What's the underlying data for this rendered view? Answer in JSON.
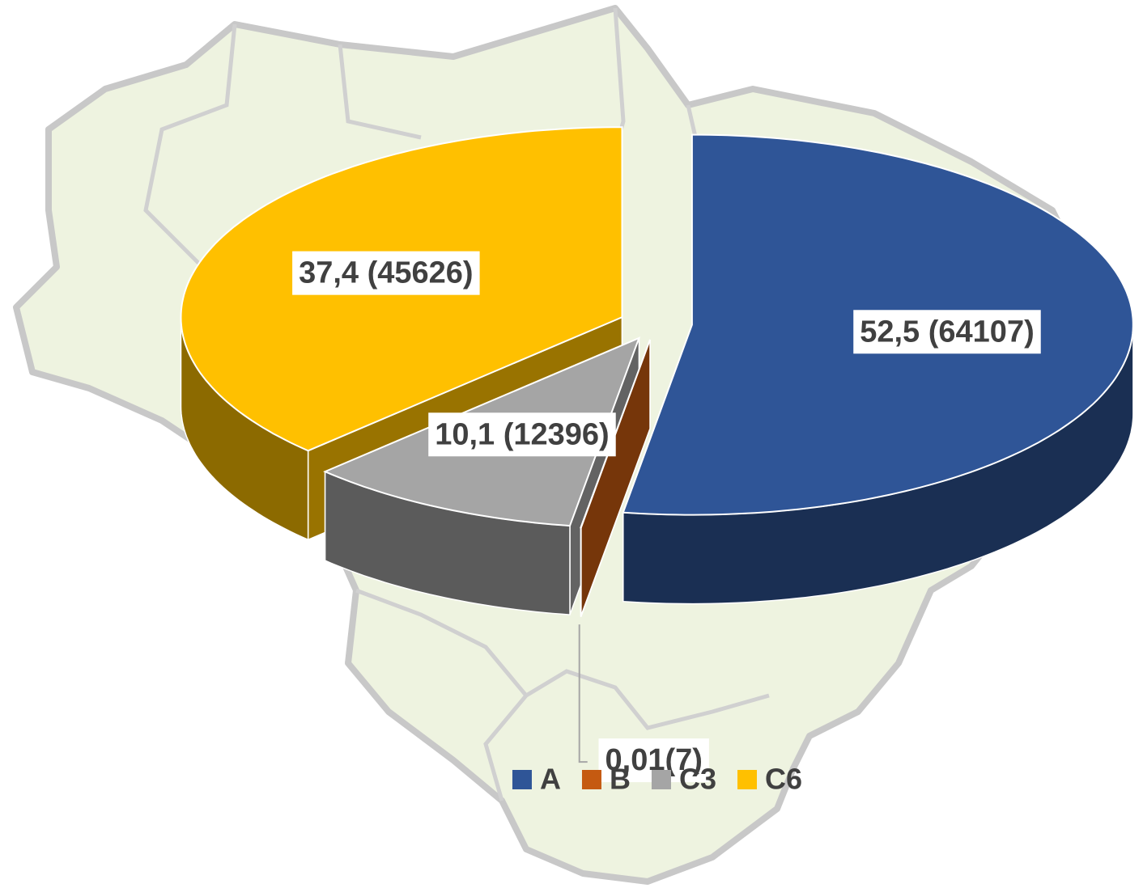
{
  "chart_data": {
    "type": "pie",
    "categories": [
      "A",
      "B",
      "C3",
      "C6"
    ],
    "values": [
      52.5,
      0.01,
      10.1,
      37.4
    ],
    "value_labels": [
      "52,5 (64107)",
      "0,01(7)",
      "10,1 (12396)",
      "37,4 (45626)"
    ],
    "colors": [
      "#2f5597",
      "#c55a11",
      "#a5a5a5",
      "#ffc000"
    ],
    "legend": "bottom"
  }
}
